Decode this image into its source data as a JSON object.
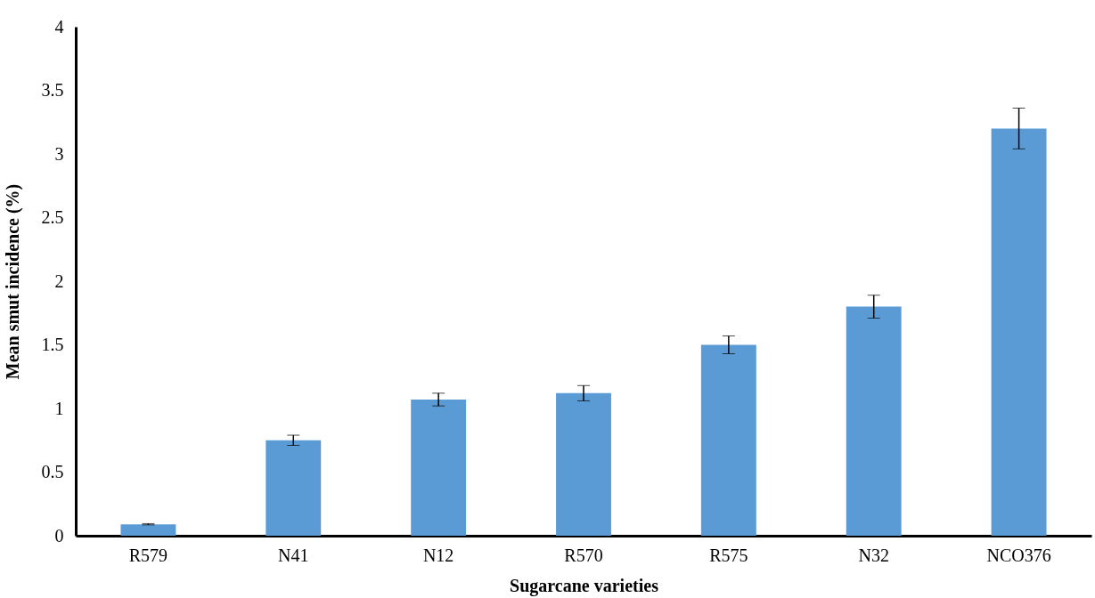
{
  "chart_data": {
    "type": "bar",
    "xlabel": "Sugarcane varieties",
    "ylabel": "Mean smut incidence (%)",
    "categories": [
      "R579",
      "N41",
      "N12",
      "R570",
      "R575",
      "N32",
      "NCO376"
    ],
    "values": [
      0.09,
      0.75,
      1.07,
      1.12,
      1.5,
      1.8,
      3.2
    ],
    "errors": [
      0.005,
      0.04,
      0.05,
      0.06,
      0.07,
      0.09,
      0.16
    ],
    "color": "#5b9bd5",
    "ylim": [
      0,
      4
    ],
    "yticks": [
      0,
      0.5,
      1,
      1.5,
      2,
      2.5,
      3,
      3.5,
      4
    ],
    "grid": false
  }
}
